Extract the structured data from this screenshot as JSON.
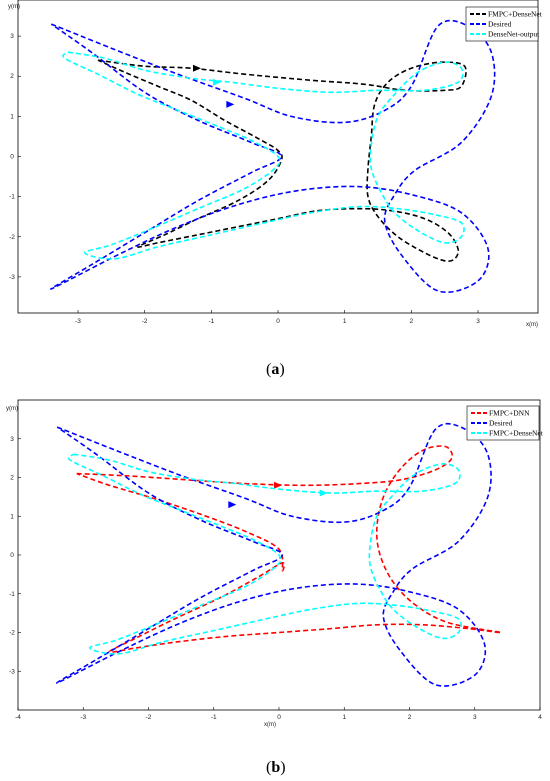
{
  "chart_data": [
    {
      "type": "line",
      "panel_label": "a",
      "xlabel": "x(m)",
      "ylabel": "y(m)",
      "xlim": [
        -3.9,
        3.9
      ],
      "ylim": [
        -3.9,
        3.9
      ],
      "xticks": [
        -3,
        -2,
        -1,
        0,
        1,
        2,
        3
      ],
      "yticks": [
        -3,
        -2,
        -1,
        0,
        1,
        2,
        3
      ],
      "grid": false,
      "legend_position": "top-right",
      "series": [
        {
          "name": "FMPC+DenseNet",
          "color": "#000000",
          "points": [
            [
              -2.7,
              2.4
            ],
            [
              -2.0,
              2.25
            ],
            [
              -1.3,
              2.2
            ],
            [
              -0.5,
              2.05
            ],
            [
              0.5,
              1.9
            ],
            [
              1.3,
              1.8
            ],
            [
              1.9,
              1.65
            ],
            [
              2.5,
              1.65
            ],
            [
              2.75,
              1.75
            ],
            [
              2.8,
              2.25
            ],
            [
              2.45,
              2.35
            ],
            [
              2.0,
              2.2
            ],
            [
              1.65,
              1.85
            ],
            [
              1.45,
              1.3
            ],
            [
              1.4,
              0.5
            ],
            [
              1.35,
              -0.3
            ],
            [
              1.35,
              -1.0
            ],
            [
              1.5,
              -1.5
            ],
            [
              1.8,
              -2.0
            ],
            [
              2.2,
              -2.4
            ],
            [
              2.5,
              -2.6
            ],
            [
              2.65,
              -2.55
            ],
            [
              2.7,
              -2.3
            ],
            [
              2.55,
              -1.9
            ],
            [
              2.2,
              -1.55
            ],
            [
              1.7,
              -1.35
            ],
            [
              1.2,
              -1.3
            ],
            [
              0.6,
              -1.35
            ],
            [
              0.0,
              -1.55
            ],
            [
              -0.6,
              -1.75
            ],
            [
              -1.2,
              -1.95
            ],
            [
              -1.8,
              -2.15
            ],
            [
              -2.1,
              -2.25
            ],
            [
              -1.7,
              -1.95
            ],
            [
              -1.2,
              -1.55
            ],
            [
              -0.6,
              -1.1
            ],
            [
              -0.15,
              -0.6
            ],
            [
              0.05,
              -0.1
            ],
            [
              0.0,
              0.15
            ],
            [
              -0.3,
              0.45
            ],
            [
              -0.8,
              0.9
            ],
            [
              -1.3,
              1.4
            ],
            [
              -1.8,
              1.75
            ],
            [
              -2.3,
              2.1
            ],
            [
              -2.7,
              2.4
            ]
          ],
          "arrows": [
            [
              -1.2,
              2.2
            ]
          ]
        },
        {
          "name": "Desired",
          "color": "#0000ff",
          "points": [
            [
              -3.4,
              3.3
            ],
            [
              -2.5,
              2.7
            ],
            [
              -1.5,
              2.05
            ],
            [
              -0.5,
              1.45
            ],
            [
              0.2,
              1.0
            ],
            [
              1.0,
              0.85
            ],
            [
              1.6,
              1.15
            ],
            [
              2.0,
              1.75
            ],
            [
              2.4,
              3.25
            ],
            [
              2.85,
              3.25
            ],
            [
              3.2,
              2.6
            ],
            [
              3.2,
              1.5
            ],
            [
              2.75,
              0.35
            ],
            [
              2.05,
              -0.35
            ],
            [
              1.75,
              -0.95
            ],
            [
              1.6,
              -1.6
            ],
            [
              1.85,
              -2.45
            ],
            [
              2.4,
              -3.35
            ],
            [
              3.0,
              -3.1
            ],
            [
              3.15,
              -2.3
            ],
            [
              2.75,
              -1.4
            ],
            [
              2.0,
              -0.95
            ],
            [
              1.2,
              -0.75
            ],
            [
              0.3,
              -0.85
            ],
            [
              -0.6,
              -1.2
            ],
            [
              -1.5,
              -1.75
            ],
            [
              -2.4,
              -2.45
            ],
            [
              -3.4,
              -3.3
            ],
            [
              -2.8,
              -2.7
            ],
            [
              -2.0,
              -1.9
            ],
            [
              -1.2,
              -1.1
            ],
            [
              -0.4,
              -0.4
            ],
            [
              0.05,
              0.0
            ],
            [
              -0.4,
              0.35
            ],
            [
              -1.2,
              0.9
            ],
            [
              -2.0,
              1.6
            ],
            [
              -2.8,
              2.6
            ],
            [
              -3.4,
              3.3
            ]
          ],
          "arrows": [
            [
              -0.7,
              1.3
            ]
          ]
        },
        {
          "name": "DenseNet-output",
          "color": "#00ffff",
          "points": [
            [
              -3.15,
              2.6
            ],
            [
              -2.6,
              2.45
            ],
            [
              -2.0,
              2.15
            ],
            [
              -1.3,
              1.95
            ],
            [
              -0.7,
              1.85
            ],
            [
              0.0,
              1.7
            ],
            [
              0.8,
              1.6
            ],
            [
              1.5,
              1.65
            ],
            [
              2.2,
              1.65
            ],
            [
              2.7,
              1.85
            ],
            [
              2.75,
              2.2
            ],
            [
              2.5,
              2.35
            ],
            [
              2.1,
              2.1
            ],
            [
              1.75,
              1.55
            ],
            [
              1.5,
              1.0
            ],
            [
              1.4,
              0.3
            ],
            [
              1.4,
              -0.3
            ],
            [
              1.55,
              -0.9
            ],
            [
              1.75,
              -1.4
            ],
            [
              2.1,
              -1.85
            ],
            [
              2.5,
              -2.15
            ],
            [
              2.75,
              -2.0
            ],
            [
              2.75,
              -1.65
            ],
            [
              2.35,
              -1.45
            ],
            [
              1.8,
              -1.3
            ],
            [
              1.2,
              -1.25
            ],
            [
              0.5,
              -1.4
            ],
            [
              -0.2,
              -1.65
            ],
            [
              -1.0,
              -1.95
            ],
            [
              -1.8,
              -2.25
            ],
            [
              -2.45,
              -2.55
            ],
            [
              -2.9,
              -2.4
            ],
            [
              -2.5,
              -2.2
            ],
            [
              -1.9,
              -1.8
            ],
            [
              -1.2,
              -1.3
            ],
            [
              -0.5,
              -0.8
            ],
            [
              -0.05,
              -0.3
            ],
            [
              0.0,
              0.0
            ],
            [
              -0.4,
              0.4
            ],
            [
              -0.9,
              0.75
            ],
            [
              -1.5,
              1.15
            ],
            [
              -2.1,
              1.55
            ],
            [
              -2.7,
              2.05
            ],
            [
              -3.2,
              2.45
            ],
            [
              -3.15,
              2.6
            ]
          ],
          "arrows": [
            [
              -0.9,
              1.85
            ]
          ]
        }
      ]
    },
    {
      "type": "line",
      "panel_label": "b",
      "xlabel": "x(m)",
      "ylabel": "y(m)",
      "xlim": [
        -4,
        4
      ],
      "ylim": [
        -4,
        4
      ],
      "xticks": [
        -4,
        -3,
        -2,
        -1,
        0,
        1,
        2,
        3,
        4
      ],
      "yticks": [
        -3,
        -2,
        -1,
        0,
        1,
        2,
        3
      ],
      "grid": false,
      "legend_position": "top-right",
      "series": [
        {
          "name": "FMPC+DNN",
          "color": "#ff0000",
          "points": [
            [
              -3.1,
              2.1
            ],
            [
              -2.4,
              2.05
            ],
            [
              -1.5,
              1.95
            ],
            [
              -0.6,
              1.85
            ],
            [
              0.4,
              1.8
            ],
            [
              1.3,
              1.85
            ],
            [
              1.9,
              1.95
            ],
            [
              2.4,
              2.2
            ],
            [
              2.65,
              2.5
            ],
            [
              2.55,
              2.8
            ],
            [
              2.2,
              2.7
            ],
            [
              1.85,
              2.2
            ],
            [
              1.6,
              1.5
            ],
            [
              1.5,
              0.7
            ],
            [
              1.55,
              0.0
            ],
            [
              1.75,
              -0.7
            ],
            [
              2.1,
              -1.3
            ],
            [
              2.6,
              -1.75
            ],
            [
              3.4,
              -2.0
            ],
            [
              2.9,
              -1.9
            ],
            [
              2.2,
              -1.8
            ],
            [
              1.5,
              -1.8
            ],
            [
              0.8,
              -1.9
            ],
            [
              0.0,
              -2.0
            ],
            [
              -0.8,
              -2.1
            ],
            [
              -1.6,
              -2.25
            ],
            [
              -2.2,
              -2.4
            ],
            [
              -2.6,
              -2.5
            ],
            [
              -2.2,
              -2.15
            ],
            [
              -1.6,
              -1.65
            ],
            [
              -0.9,
              -1.1
            ],
            [
              -0.3,
              -0.55
            ],
            [
              0.05,
              -0.2
            ],
            [
              0.05,
              -0.4
            ],
            [
              0.0,
              0.15
            ],
            [
              -0.5,
              0.6
            ],
            [
              -1.2,
              1.05
            ],
            [
              -1.9,
              1.45
            ],
            [
              -2.6,
              1.8
            ],
            [
              -3.1,
              2.1
            ]
          ],
          "arrows": [
            [
              0.0,
              1.8
            ]
          ]
        },
        {
          "name": "Desired",
          "color": "#0000ff",
          "points": [
            [
              -3.4,
              3.3
            ],
            [
              -2.5,
              2.7
            ],
            [
              -1.5,
              2.05
            ],
            [
              -0.5,
              1.45
            ],
            [
              0.2,
              1.0
            ],
            [
              1.0,
              0.85
            ],
            [
              1.6,
              1.15
            ],
            [
              2.0,
              1.75
            ],
            [
              2.4,
              3.25
            ],
            [
              2.85,
              3.25
            ],
            [
              3.2,
              2.6
            ],
            [
              3.2,
              1.5
            ],
            [
              2.75,
              0.35
            ],
            [
              2.05,
              -0.35
            ],
            [
              1.75,
              -0.95
            ],
            [
              1.6,
              -1.6
            ],
            [
              1.85,
              -2.45
            ],
            [
              2.4,
              -3.35
            ],
            [
              3.0,
              -3.1
            ],
            [
              3.15,
              -2.3
            ],
            [
              2.75,
              -1.4
            ],
            [
              2.0,
              -0.95
            ],
            [
              1.2,
              -0.75
            ],
            [
              0.3,
              -0.85
            ],
            [
              -0.6,
              -1.2
            ],
            [
              -1.5,
              -1.75
            ],
            [
              -2.4,
              -2.45
            ],
            [
              -3.4,
              -3.3
            ],
            [
              -2.8,
              -2.7
            ],
            [
              -2.0,
              -1.9
            ],
            [
              -1.2,
              -1.1
            ],
            [
              -0.4,
              -0.4
            ],
            [
              0.05,
              0.0
            ],
            [
              -0.4,
              0.35
            ],
            [
              -1.2,
              0.9
            ],
            [
              -2.0,
              1.6
            ],
            [
              -2.8,
              2.6
            ],
            [
              -3.4,
              3.3
            ]
          ],
          "arrows": [
            [
              -0.7,
              1.3
            ]
          ]
        },
        {
          "name": "FMPC+DenseNet",
          "color": "#00ffff",
          "points": [
            [
              -3.15,
              2.6
            ],
            [
              -2.6,
              2.45
            ],
            [
              -2.0,
              2.15
            ],
            [
              -1.3,
              1.95
            ],
            [
              -0.7,
              1.85
            ],
            [
              0.0,
              1.7
            ],
            [
              0.8,
              1.6
            ],
            [
              1.5,
              1.65
            ],
            [
              2.2,
              1.65
            ],
            [
              2.7,
              1.85
            ],
            [
              2.75,
              2.2
            ],
            [
              2.5,
              2.35
            ],
            [
              2.1,
              2.1
            ],
            [
              1.75,
              1.55
            ],
            [
              1.5,
              1.0
            ],
            [
              1.4,
              0.3
            ],
            [
              1.4,
              -0.3
            ],
            [
              1.55,
              -0.9
            ],
            [
              1.75,
              -1.4
            ],
            [
              2.1,
              -1.85
            ],
            [
              2.5,
              -2.15
            ],
            [
              2.75,
              -2.0
            ],
            [
              2.75,
              -1.65
            ],
            [
              2.35,
              -1.45
            ],
            [
              1.8,
              -1.3
            ],
            [
              1.2,
              -1.25
            ],
            [
              0.5,
              -1.4
            ],
            [
              -0.2,
              -1.65
            ],
            [
              -1.0,
              -1.95
            ],
            [
              -1.8,
              -2.25
            ],
            [
              -2.45,
              -2.55
            ],
            [
              -2.9,
              -2.4
            ],
            [
              -2.5,
              -2.2
            ],
            [
              -1.9,
              -1.8
            ],
            [
              -1.2,
              -1.3
            ],
            [
              -0.5,
              -0.8
            ],
            [
              -0.05,
              -0.3
            ],
            [
              0.0,
              0.0
            ],
            [
              -0.4,
              0.4
            ],
            [
              -0.9,
              0.75
            ],
            [
              -1.5,
              1.15
            ],
            [
              -2.1,
              1.55
            ],
            [
              -2.7,
              2.05
            ],
            [
              -3.2,
              2.45
            ],
            [
              -3.15,
              2.6
            ]
          ],
          "arrows": [
            [
              0.7,
              1.6
            ]
          ]
        }
      ]
    }
  ]
}
